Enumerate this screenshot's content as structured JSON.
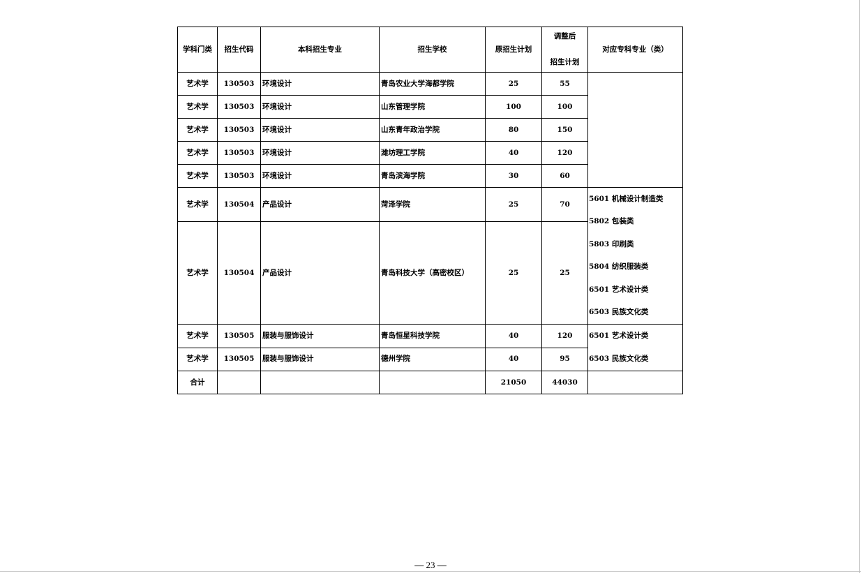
{
  "headers": [
    "学科门类",
    "招生代码",
    "本科招生专业",
    "招生学校",
    "原招生计划",
    "调整后",
    "招生计划",
    "对应专科专业（类）"
  ],
  "rows": [
    {
      "category": "艺术学",
      "code": "130503",
      "major": "环境设计",
      "school": "青岛农业大学海都学院",
      "original": "25",
      "adjusted": "55"
    },
    {
      "category": "艺术学",
      "code": "130503",
      "major": "环境设计",
      "school": "山东管理学院",
      "original": "100",
      "adjusted": "100"
    },
    {
      "category": "艺术学",
      "code": "130503",
      "major": "环境设计",
      "school": "山东青年政治学院",
      "original": "80",
      "adjusted": "150"
    },
    {
      "category": "艺术学",
      "code": "130503",
      "major": "环境设计",
      "school": "潍坊理工学院",
      "original": "40",
      "adjusted": "120"
    },
    {
      "category": "艺术学",
      "code": "130503",
      "major": "环境设计",
      "school": "青岛滨海学院",
      "original": "30",
      "adjusted": "60"
    },
    {
      "category": "艺术学",
      "code": "130504",
      "major": "产品设计",
      "school": "菏泽学院",
      "original": "25",
      "adjusted": "70"
    },
    {
      "category": "艺术学",
      "code": "130504",
      "major": "产品设计",
      "school": "青岛科技大学（高密校区）",
      "original": "25",
      "adjusted": "25"
    },
    {
      "category": "艺术学",
      "code": "130505",
      "major": "服装与服饰设计",
      "school": "青岛恒星科技学院",
      "original": "40",
      "adjusted": "120"
    },
    {
      "category": "艺术学",
      "code": "130505",
      "major": "服装与服饰设计",
      "school": "德州学院",
      "original": "40",
      "adjusted": "95"
    }
  ],
  "related_groups": [
    [],
    [
      "5601 机械设计制造类",
      "5802 包装类",
      "5803 印刷类",
      "5804 纺织服装类",
      "6501 艺术设计类",
      "6503 民族文化类"
    ],
    [
      "6501 艺术设计类",
      "6503 民族文化类"
    ]
  ],
  "total": {
    "label": "合计",
    "original": "21050",
    "adjusted": "44030"
  },
  "page_number": "— 23 —"
}
